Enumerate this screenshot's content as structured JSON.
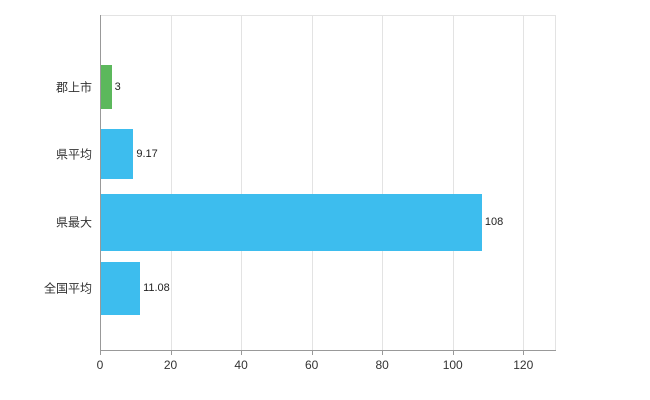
{
  "chart_data": {
    "type": "bar",
    "orientation": "horizontal",
    "title": "",
    "xlabel": "",
    "ylabel": "",
    "categories": [
      "郡上市",
      "県平均",
      "県最大",
      "全国平均"
    ],
    "values": [
      3,
      9.17,
      108,
      11.08
    ],
    "value_labels": [
      "3",
      "9.17",
      "108",
      "11.08"
    ],
    "bar_colors": [
      "#5cb85c",
      "#3dbdee",
      "#3dbdee",
      "#3dbdee"
    ],
    "x_ticks": [
      "0",
      "20",
      "40",
      "60",
      "80",
      "100",
      "120"
    ],
    "x_tick_values": [
      0,
      20,
      40,
      60,
      80,
      100,
      120
    ],
    "xlim": [
      0,
      129
    ],
    "grid": "vertical",
    "legend": "none",
    "colors": {
      "highlight_bar": "#5cb85c",
      "default_bar": "#3dbdee",
      "gridline": "#e3e3e3",
      "axis": "#999999",
      "text": "#333333",
      "background": "#ffffff"
    }
  }
}
